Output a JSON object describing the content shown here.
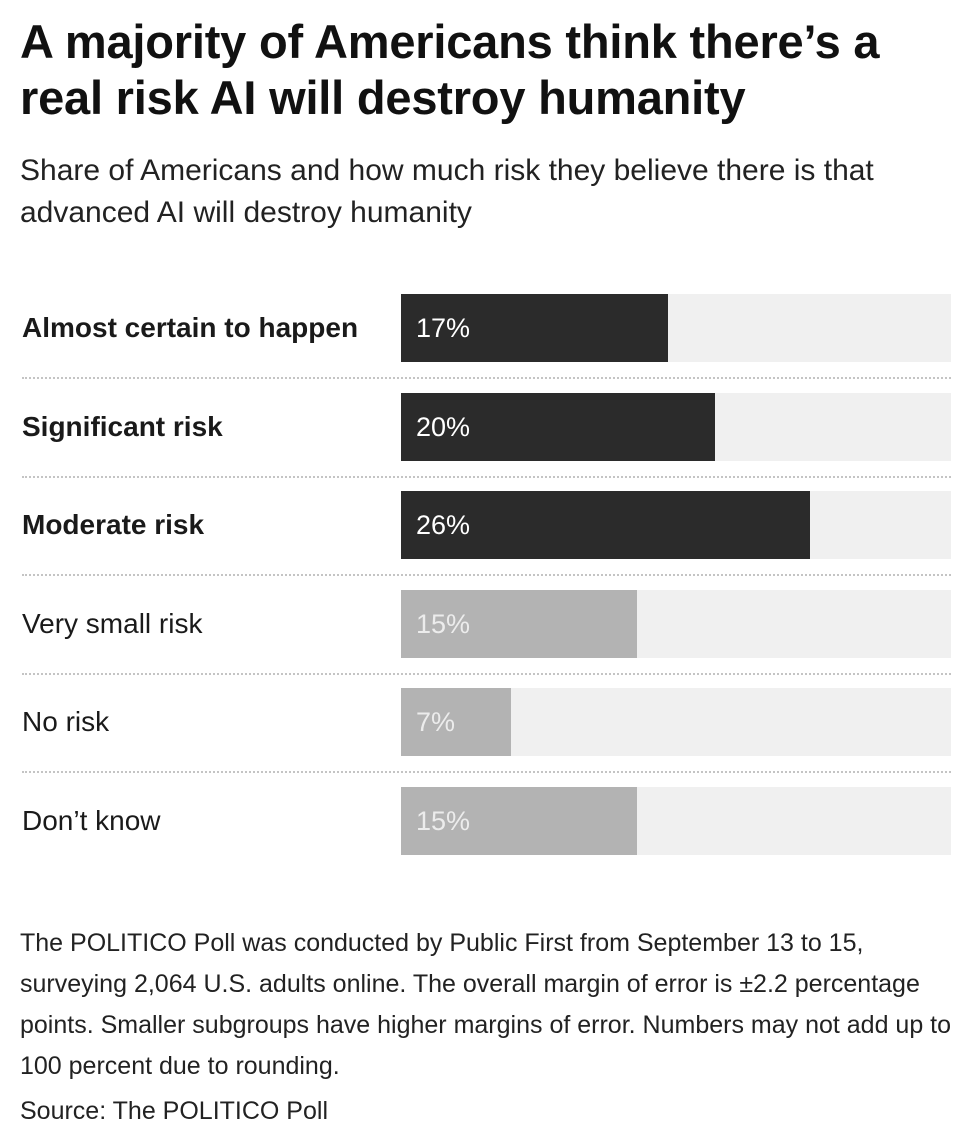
{
  "chart_data": {
    "type": "bar",
    "orientation": "horizontal",
    "title": "A majority of Americans think there’s a real risk AI will destroy humanity",
    "subtitle": "Share of Americans and how much risk they believe there is that advanced AI will destroy humanity",
    "categories": [
      "Almost certain to happen",
      "Significant risk",
      "Moderate risk",
      "Very small risk",
      "No risk",
      "Don’t know"
    ],
    "values": [
      17,
      20,
      26,
      15,
      7,
      15
    ],
    "value_labels": [
      "17%",
      "20%",
      "26%",
      "15%",
      "7%",
      "15%"
    ],
    "emphasized": [
      true,
      true,
      true,
      false,
      false,
      false
    ],
    "xlim": [
      0,
      35
    ],
    "grid": false,
    "legend": "none",
    "colors": {
      "emphasized_bar": "#2b2b2b",
      "other_bar": "#b3b3b3",
      "track": "#f0f0f0",
      "emphasized_value_text": "#ffffff",
      "other_value_text": "#ececec"
    },
    "note": "The POLITICO Poll was conducted by Public First from September 13 to 15, surveying 2,064 U.S. adults online. The overall margin of error is ±2.2 percentage points. Smaller subgroups have higher margins of error. Numbers may not add up to 100 percent due to rounding.",
    "source": "Source: The POLITICO Poll"
  }
}
